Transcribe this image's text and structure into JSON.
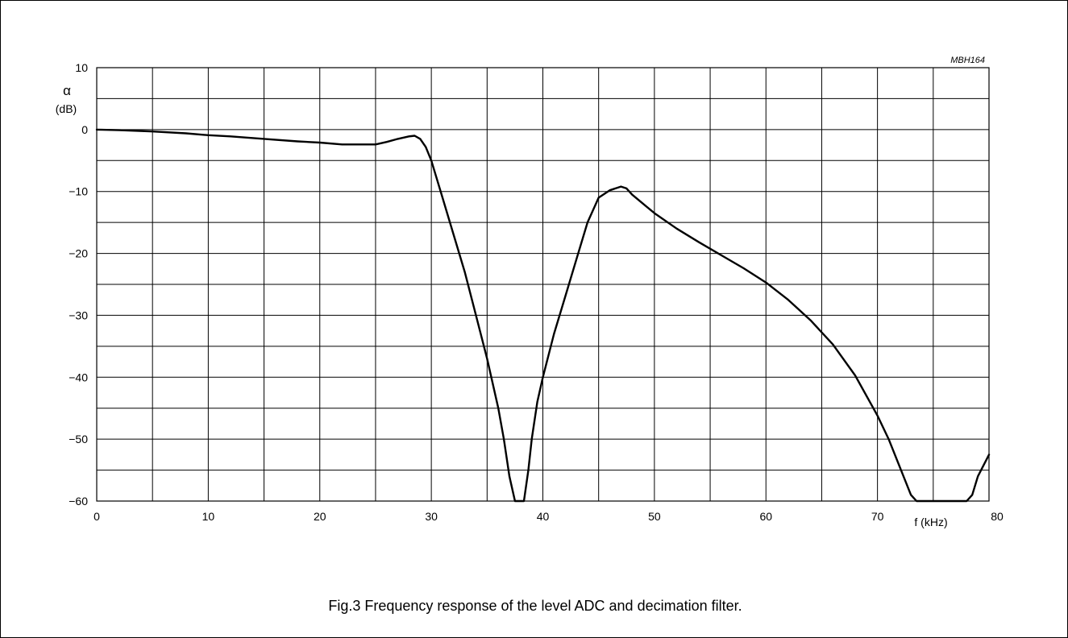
{
  "figure_code": "MBH164",
  "caption": "Fig.3  Frequency response of the level ADC and decimation filter.",
  "chart_data": {
    "type": "line",
    "title": "",
    "xlabel": "f (kHz)",
    "ylabel_symbol": "α",
    "ylabel_unit": "(dB)",
    "xlim": [
      0,
      80
    ],
    "ylim": [
      -60,
      10
    ],
    "x_ticks": [
      0,
      10,
      20,
      30,
      40,
      50,
      60,
      70,
      80
    ],
    "x_tick_labels": [
      "0",
      "10",
      "20",
      "30",
      "40",
      "50",
      "60",
      "70",
      "80"
    ],
    "y_ticks": [
      10,
      0,
      -10,
      -20,
      -30,
      -40,
      -50,
      -60
    ],
    "y_tick_labels": [
      "10",
      "0",
      "−10",
      "−20",
      "−30",
      "−40",
      "−50",
      "−60"
    ],
    "x_grid_step": 5,
    "y_grid_step": 5,
    "grid": true,
    "line_color": "#000000",
    "series": [
      {
        "x": [
          0,
          2,
          5,
          8,
          10,
          12,
          15,
          18,
          20,
          22,
          24,
          25,
          26,
          27,
          28,
          28.5,
          29,
          29.5,
          30,
          31,
          32,
          33,
          34,
          35,
          36,
          36.5,
          37,
          37.5,
          38,
          38.3,
          38.7,
          39,
          39.5,
          40,
          41,
          42,
          43,
          44,
          45,
          46,
          47,
          47.5,
          48,
          49,
          50,
          52,
          54,
          56,
          58,
          60,
          62,
          64,
          66,
          68,
          70,
          71,
          72,
          73,
          73.5,
          74,
          76,
          78,
          78.5,
          79,
          80
        ],
        "y": [
          0,
          -0.1,
          -0.3,
          -0.6,
          -0.9,
          -1.1,
          -1.5,
          -1.9,
          -2.1,
          -2.4,
          -2.4,
          -2.4,
          -2.0,
          -1.5,
          -1.1,
          -1.0,
          -1.5,
          -2.8,
          -5,
          -11,
          -17,
          -23,
          -30,
          -37,
          -45,
          -50,
          -56,
          -60,
          -60,
          -60,
          -55,
          -50,
          -44,
          -40,
          -33,
          -27,
          -21,
          -15,
          -11,
          -9.8,
          -9.2,
          -9.5,
          -10.5,
          -12,
          -13.5,
          -16,
          -18.2,
          -20.3,
          -22.4,
          -24.7,
          -27.5,
          -30.8,
          -34.7,
          -39.7,
          -46.2,
          -50,
          -54.5,
          -59,
          -60,
          -60,
          -60,
          -60,
          -59,
          -56,
          -52.5
        ]
      }
    ]
  }
}
